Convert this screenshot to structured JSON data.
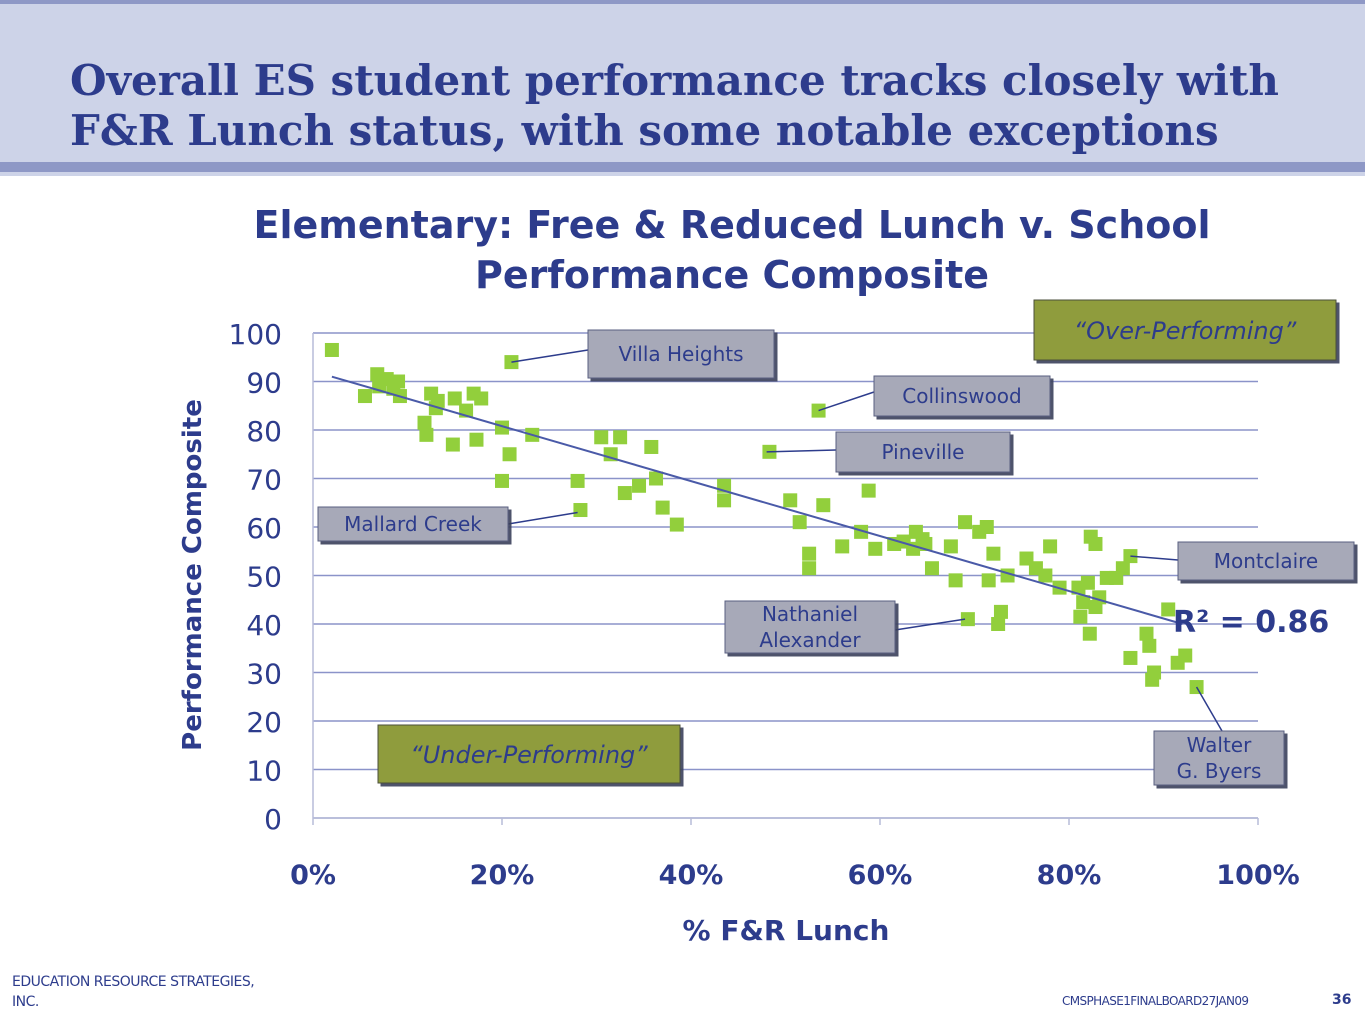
{
  "slide": {
    "title_line1": "Overall ES student performance tracks closely with",
    "title_line2": "F&R Lunch status, with some notable exceptions",
    "footer_left_line1": "EDUCATION RESOURCE STRATEGIES,",
    "footer_left_line2": "INC.",
    "footer_right": "CMSPHASE1FINALBOARD27JAN09",
    "page_number": "36"
  },
  "colors": {
    "title": "#2d3c8c",
    "header_bg": "#cdd3e8",
    "point": "#92cf3c",
    "trendline": "#4a5aa8",
    "gridline": "#8b93c9",
    "label_box": "#a7a9b8",
    "region_box": "#8f9c3c"
  },
  "chart_data": {
    "type": "scatter",
    "title_line1": "Elementary: Free & Reduced Lunch v. School",
    "title_line2": "Performance Composite",
    "xlabel": "% F&R Lunch",
    "ylabel": "Performance Composite",
    "xlim": [
      0,
      100
    ],
    "ylim": [
      0,
      100
    ],
    "x_ticks": [
      "0%",
      "20%",
      "40%",
      "60%",
      "80%",
      "100%"
    ],
    "y_ticks": [
      "0",
      "10",
      "20",
      "30",
      "40",
      "50",
      "60",
      "70",
      "80",
      "90",
      "100"
    ],
    "grid": true,
    "trendline": {
      "x": [
        2,
        92
      ],
      "y": [
        91,
        40
      ]
    },
    "r_squared": "R² = 0.86",
    "regions": [
      {
        "text": "“Over-Performing”",
        "placement": "top-right"
      },
      {
        "text": "“Under-Performing”",
        "placement": "bottom-left"
      }
    ],
    "annotations": [
      {
        "text": "Villa Heights",
        "x": 21,
        "y": 94
      },
      {
        "text": "Collinswood",
        "x": 53.5,
        "y": 84
      },
      {
        "text": "Pineville",
        "x": 48,
        "y": 75.5
      },
      {
        "text": "Mallard Creek",
        "x": 28,
        "y": 63
      },
      {
        "text": "Montclaire",
        "x": 86.5,
        "y": 54
      },
      {
        "text": "Nathaniel Alexander",
        "x": 69,
        "y": 41
      },
      {
        "text": "Walter G. Byers",
        "x": 93.5,
        "y": 27
      }
    ],
    "points": [
      {
        "x": 2,
        "y": 96.5
      },
      {
        "x": 5.5,
        "y": 87
      },
      {
        "x": 6.8,
        "y": 91.5
      },
      {
        "x": 7,
        "y": 89
      },
      {
        "x": 7.8,
        "y": 90.5
      },
      {
        "x": 8.5,
        "y": 88.5
      },
      {
        "x": 9,
        "y": 90
      },
      {
        "x": 9.2,
        "y": 87
      },
      {
        "x": 11.8,
        "y": 81.5
      },
      {
        "x": 12,
        "y": 79
      },
      {
        "x": 12.5,
        "y": 87.5
      },
      {
        "x": 13,
        "y": 84.5
      },
      {
        "x": 13.2,
        "y": 86
      },
      {
        "x": 14.8,
        "y": 77
      },
      {
        "x": 15,
        "y": 86.5
      },
      {
        "x": 16.2,
        "y": 84
      },
      {
        "x": 17,
        "y": 87.5
      },
      {
        "x": 17.3,
        "y": 78
      },
      {
        "x": 17.8,
        "y": 86.5
      },
      {
        "x": 20,
        "y": 80.5
      },
      {
        "x": 20,
        "y": 69.5
      },
      {
        "x": 20.8,
        "y": 75
      },
      {
        "x": 21,
        "y": 94
      },
      {
        "x": 23.2,
        "y": 79
      },
      {
        "x": 28,
        "y": 69.5
      },
      {
        "x": 28.3,
        "y": 63.5
      },
      {
        "x": 30.5,
        "y": 78.5
      },
      {
        "x": 31.5,
        "y": 75
      },
      {
        "x": 32.5,
        "y": 78.5
      },
      {
        "x": 33,
        "y": 67
      },
      {
        "x": 34.5,
        "y": 68.5
      },
      {
        "x": 35.8,
        "y": 76.5
      },
      {
        "x": 36.3,
        "y": 70
      },
      {
        "x": 37,
        "y": 64
      },
      {
        "x": 38.5,
        "y": 60.5
      },
      {
        "x": 43.5,
        "y": 68.5
      },
      {
        "x": 43.5,
        "y": 65.5
      },
      {
        "x": 48.3,
        "y": 75.5
      },
      {
        "x": 50.5,
        "y": 65.5
      },
      {
        "x": 51.5,
        "y": 61
      },
      {
        "x": 52.5,
        "y": 54.5
      },
      {
        "x": 52.5,
        "y": 51.5
      },
      {
        "x": 53.5,
        "y": 84
      },
      {
        "x": 54,
        "y": 64.5
      },
      {
        "x": 56,
        "y": 56
      },
      {
        "x": 58,
        "y": 59
      },
      {
        "x": 58.8,
        "y": 67.5
      },
      {
        "x": 59.5,
        "y": 55.5
      },
      {
        "x": 61.5,
        "y": 56.5
      },
      {
        "x": 62.5,
        "y": 57
      },
      {
        "x": 63.5,
        "y": 55.5
      },
      {
        "x": 63.8,
        "y": 59
      },
      {
        "x": 64.5,
        "y": 57.5
      },
      {
        "x": 64.8,
        "y": 56.5
      },
      {
        "x": 65.5,
        "y": 51.5
      },
      {
        "x": 67.5,
        "y": 56
      },
      {
        "x": 68,
        "y": 49
      },
      {
        "x": 69,
        "y": 61
      },
      {
        "x": 69.3,
        "y": 41
      },
      {
        "x": 70.5,
        "y": 59
      },
      {
        "x": 71.3,
        "y": 60
      },
      {
        "x": 71.5,
        "y": 49
      },
      {
        "x": 72,
        "y": 54.5
      },
      {
        "x": 72.5,
        "y": 40
      },
      {
        "x": 72.8,
        "y": 42.5
      },
      {
        "x": 73.5,
        "y": 50
      },
      {
        "x": 75.5,
        "y": 53.5
      },
      {
        "x": 76.5,
        "y": 51.5
      },
      {
        "x": 77.5,
        "y": 50
      },
      {
        "x": 78,
        "y": 56
      },
      {
        "x": 79,
        "y": 47.5
      },
      {
        "x": 81,
        "y": 47.5
      },
      {
        "x": 81.2,
        "y": 41.5
      },
      {
        "x": 81.5,
        "y": 44.5
      },
      {
        "x": 82,
        "y": 48.5
      },
      {
        "x": 82.2,
        "y": 38
      },
      {
        "x": 82.3,
        "y": 58
      },
      {
        "x": 82.8,
        "y": 56.5
      },
      {
        "x": 82.8,
        "y": 43.5
      },
      {
        "x": 83.2,
        "y": 45.5
      },
      {
        "x": 84,
        "y": 49.5
      },
      {
        "x": 85,
        "y": 49.5
      },
      {
        "x": 85.7,
        "y": 51.5
      },
      {
        "x": 86.5,
        "y": 54
      },
      {
        "x": 86.5,
        "y": 33
      },
      {
        "x": 88.2,
        "y": 38
      },
      {
        "x": 88.5,
        "y": 35.5
      },
      {
        "x": 88.8,
        "y": 28.5
      },
      {
        "x": 89,
        "y": 30
      },
      {
        "x": 90.5,
        "y": 43
      },
      {
        "x": 91.5,
        "y": 32
      },
      {
        "x": 92.3,
        "y": 33.5
      },
      {
        "x": 93.5,
        "y": 27
      }
    ]
  }
}
